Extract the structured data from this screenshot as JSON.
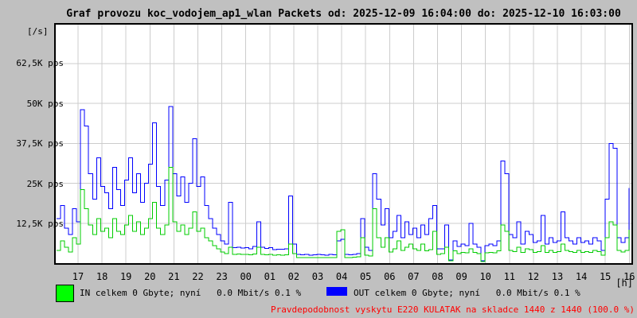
{
  "title": "Graf provozu koc_vodojem_ap1_wlan Packets od: 2025-12-09 16:04:00 do: 2025-12-10 16:03:00",
  "y_axis": {
    "unit_label": "[/s]",
    "tick_labels": [
      "62,5K pps",
      "50K pps",
      "37,5K pps",
      "25K pps",
      "12,5K pps"
    ]
  },
  "x_axis": {
    "unit_label": "[h]",
    "tick_labels": [
      "17",
      "18",
      "19",
      "20",
      "21",
      "22",
      "23",
      "00",
      "01",
      "02",
      "03",
      "04",
      "05",
      "06",
      "07",
      "08",
      "09",
      "10",
      "11",
      "12",
      "13",
      "14",
      "15",
      "16"
    ]
  },
  "legend": {
    "in_label": "IN celkem 0 Gbyte; nyní   0.0 Mbit/s 0.1 %",
    "in_color": "#00ff00",
    "out_label": "OUT celkem 0 Gbyte; nyní   0.0 Mbit/s 0.1 %",
    "out_color": "#0000ff"
  },
  "status": {
    "text": "Pravdepodobnost vyskytu E220 KULATAK na skladce 1440 z 1440 (100.0 %)",
    "color": "#ff0000"
  },
  "colors": {
    "background": "#c0c0c0",
    "plot_background": "#ffffff",
    "grid": "#cccccc",
    "in_line": "#00cc00",
    "out_line": "#0000ff"
  },
  "chart_data": {
    "type": "line",
    "title": "Graf provozu koc_vodojem_ap1_wlan Packets",
    "time_start": "2025-12-09 16:04:00",
    "time_end": "2025-12-10 16:03:00",
    "sample_interval_minutes": 10,
    "x_hour_gridlines": [
      "17",
      "18",
      "19",
      "20",
      "21",
      "22",
      "23",
      "00",
      "01",
      "02",
      "03",
      "04",
      "05",
      "06",
      "07",
      "08",
      "09",
      "10",
      "11",
      "12",
      "13",
      "14",
      "15",
      "16"
    ],
    "ylabel": "[/s]",
    "y_unit": "pps",
    "ylim_kpps": [
      0,
      74.7
    ],
    "y_tick_values_kpps": [
      12.5,
      25,
      37.5,
      50,
      62.5
    ],
    "grid": true,
    "legend_position": "bottom",
    "series": [
      {
        "name": "OUT",
        "color": "#0000ff",
        "values_kpps": [
          14,
          18,
          11,
          9,
          17,
          13,
          48,
          43,
          28,
          20,
          33,
          24,
          22,
          17,
          30,
          23,
          18,
          26,
          33,
          22,
          28,
          19,
          25,
          31,
          44,
          24,
          18,
          26,
          49,
          28,
          21,
          27,
          19,
          25,
          39,
          24,
          27,
          18,
          14,
          11,
          9,
          7,
          6,
          19,
          4.8,
          5,
          4.7,
          4.9,
          4.5,
          5.2,
          13,
          5,
          4.6,
          4.8,
          4.2,
          4.4,
          4.3,
          4.5,
          21,
          6,
          2.8,
          2.6,
          2.7,
          2.5,
          2.6,
          2.7,
          2.6,
          2.5,
          2.7,
          2.6,
          7,
          7.5,
          2.7,
          2.6,
          2.8,
          3,
          14,
          5,
          4,
          28,
          20,
          12,
          17,
          8,
          10,
          15,
          8,
          13,
          9,
          11,
          8,
          12,
          9,
          14,
          18,
          4.5,
          4.5,
          12,
          1,
          7,
          5.2,
          6,
          5.5,
          12.5,
          6,
          5,
          0.8,
          5.5,
          6,
          5.5,
          7,
          32,
          28,
          9,
          8,
          13,
          6,
          10,
          9,
          6.5,
          7,
          15,
          6,
          8,
          6.5,
          7,
          16,
          8,
          7,
          6,
          8,
          6.5,
          7,
          6,
          8,
          7,
          4,
          20,
          37.5,
          36,
          8,
          6.5,
          8,
          23.5
        ]
      },
      {
        "name": "IN",
        "color": "#00cc00",
        "values_kpps": [
          4,
          7,
          5,
          3.5,
          8,
          6,
          23,
          17,
          12,
          9,
          14,
          10,
          11,
          8,
          14,
          10,
          9,
          12,
          15,
          10,
          13,
          9,
          11,
          14,
          19,
          11,
          9,
          12,
          30,
          13,
          10,
          12,
          9,
          11,
          16,
          10,
          11,
          8,
          7,
          5.5,
          4.5,
          3.5,
          3,
          5,
          2.8,
          2.9,
          2.7,
          2.8,
          2.6,
          2.9,
          5,
          2.8,
          2.6,
          2.7,
          2.5,
          2.6,
          2.5,
          2.6,
          6,
          3,
          1.8,
          1.7,
          1.8,
          1.7,
          1.8,
          1.7,
          1.8,
          1.7,
          1.8,
          1.7,
          10,
          10.5,
          1.8,
          1.7,
          1.9,
          2,
          8,
          2.5,
          2.2,
          17,
          8,
          5,
          8,
          3.5,
          4.5,
          7,
          4,
          5,
          6,
          4.5,
          4,
          6,
          3.8,
          4.2,
          10,
          2.8,
          3,
          5,
          0.8,
          3.8,
          3,
          3.4,
          3.2,
          4.5,
          3.3,
          3,
          0.5,
          3.2,
          3.4,
          3.2,
          3.8,
          12,
          10,
          4,
          3.6,
          5,
          3.3,
          4.5,
          4.2,
          3.4,
          3.6,
          5.5,
          3.3,
          4,
          3.4,
          3.6,
          6,
          4,
          3.6,
          3.4,
          4,
          3.4,
          3.6,
          3.4,
          4,
          3.6,
          2.5,
          8,
          13,
          12,
          4,
          3.5,
          4,
          10.5
        ]
      }
    ]
  }
}
